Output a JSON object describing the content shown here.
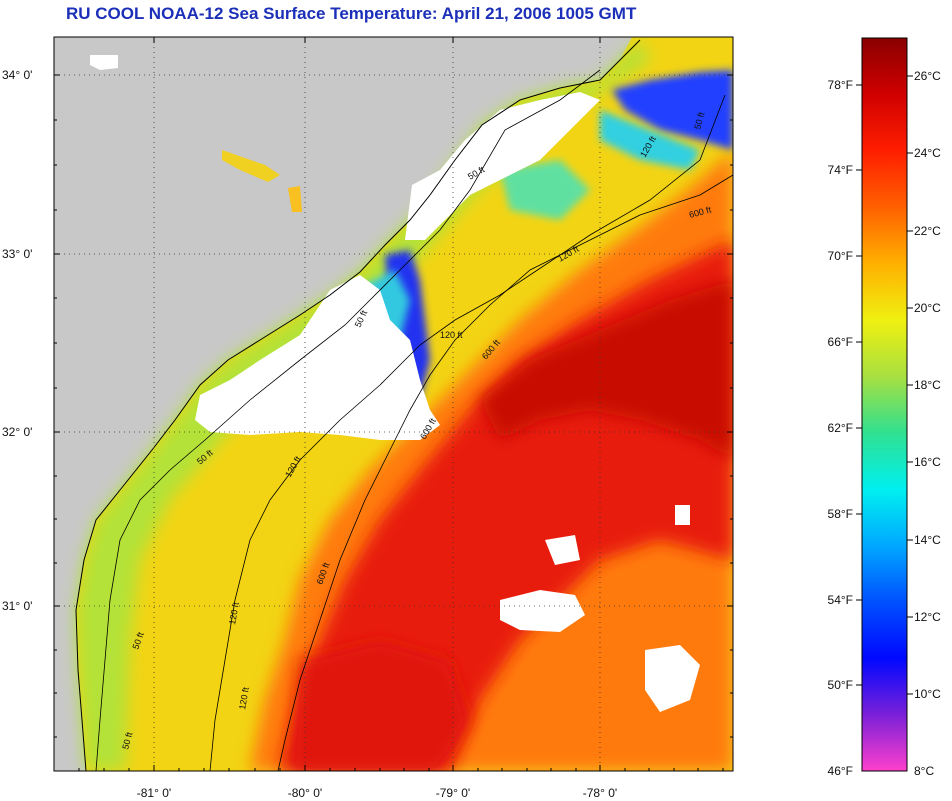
{
  "title": "RU COOL  NOAA-12  Sea Surface Temperature:  April 21, 2006 1005 GMT",
  "axes": {
    "latitude_labels": [
      "34° 0'",
      "33° 0'",
      "32° 0'",
      "31° 0'"
    ],
    "longitude_labels": [
      "-81° 0'",
      "-80° 0'",
      "-79° 0'",
      "-78° 0'"
    ]
  },
  "contour_labels": [
    "50 ft",
    "120 ft",
    "600 ft",
    "50 ft",
    "120 ft",
    "600 ft",
    "50 ft",
    "120 ft",
    "600 ft",
    "50 ft",
    "120 ft",
    "600 ft",
    "50 ft",
    "120 ft",
    "50 ft",
    "120 ft"
  ],
  "colorbar": {
    "fahrenheit_labels": [
      "78°F",
      "74°F",
      "70°F",
      "66°F",
      "62°F",
      "58°F",
      "54°F",
      "50°F",
      "46°F"
    ],
    "celsius_labels": [
      "26°C",
      "24°C",
      "22°C",
      "20°C",
      "18°C",
      "16°C",
      "14°C",
      "12°C",
      "10°C",
      "8°C"
    ],
    "stops": [
      "#ff40cc",
      "#7a20d8",
      "#0008ff",
      "#0050ff",
      "#00a8ff",
      "#00f0f0",
      "#30e090",
      "#a8e040",
      "#f0f010",
      "#ffb000",
      "#ff6000",
      "#ff1e00",
      "#d00000",
      "#8a0000"
    ]
  },
  "colors": {
    "land": "#c8c8c8",
    "cloud": "#ffffff",
    "gulf_stream": "#e81808",
    "shelf_warm": "#ff6010",
    "shelf_mid": "#f4d010",
    "inshore_cool": "#a8e040",
    "cold_water": "#1840ff",
    "title": "#1c2fb8"
  }
}
